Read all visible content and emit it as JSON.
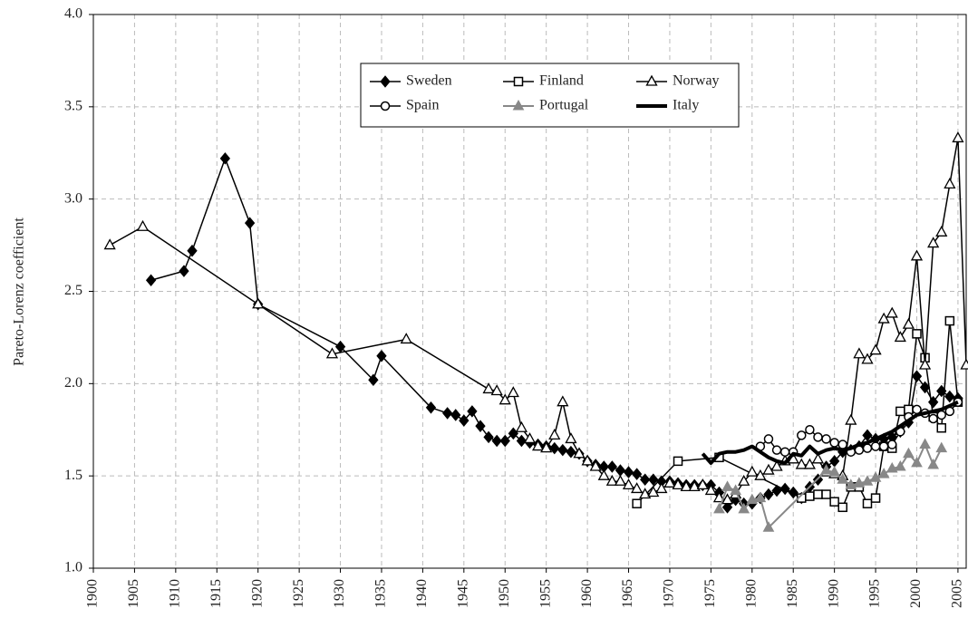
{
  "chart_data": {
    "type": "line",
    "y_label": "Pareto-Lorenz coefficient",
    "xlim": [
      1900,
      2006
    ],
    "ylim": [
      1.0,
      4.0
    ],
    "xticks": [
      1900,
      1905,
      1910,
      1915,
      1920,
      1925,
      1930,
      1935,
      1940,
      1945,
      1950,
      1955,
      1960,
      1965,
      1970,
      1975,
      1980,
      1985,
      1990,
      1995,
      2000,
      2005
    ],
    "yticks": [
      {
        "value": 1.0,
        "label": "1.0"
      },
      {
        "value": 1.5,
        "label": "1.5"
      },
      {
        "value": 2.0,
        "label": "2.0"
      },
      {
        "value": 2.5,
        "label": "2.5"
      },
      {
        "value": 3.0,
        "label": "3.0"
      },
      {
        "value": 3.5,
        "label": "3.5"
      },
      {
        "value": 4.0,
        "label": "4.0"
      }
    ],
    "grid": true,
    "legend": "top",
    "series": [
      {
        "name": "Sweden",
        "color": "#000000",
        "marker": "diamond",
        "line_width": 1.5,
        "x": [
          1907,
          1911,
          1912,
          1916,
          1919,
          1920,
          1930,
          1934,
          1935,
          1941,
          1943,
          1944,
          1945,
          1946,
          1947,
          1948,
          1949,
          1950,
          1951,
          1952,
          1953,
          1954,
          1955,
          1956,
          1957,
          1958,
          1959,
          1960,
          1961,
          1962,
          1963,
          1964,
          1965,
          1966,
          1967,
          1968,
          1969,
          1970,
          1971,
          1972,
          1973,
          1974,
          1975,
          1976,
          1977,
          1978,
          1979,
          1980,
          1981,
          1982,
          1983,
          1984,
          1985,
          1986,
          1987,
          1988,
          1989,
          1990,
          1991,
          1992,
          1993,
          1994,
          1995,
          1996,
          1997,
          1998,
          1999,
          2000,
          2001,
          2002,
          2003,
          2004,
          2005
        ],
        "values": [
          2.56,
          2.61,
          2.72,
          3.22,
          2.87,
          2.43,
          2.2,
          2.02,
          2.15,
          1.87,
          1.84,
          1.83,
          1.8,
          1.85,
          1.77,
          1.71,
          1.69,
          1.69,
          1.73,
          1.69,
          1.68,
          1.67,
          1.66,
          1.65,
          1.64,
          1.63,
          1.62,
          1.58,
          1.56,
          1.55,
          1.55,
          1.53,
          1.52,
          1.51,
          1.48,
          1.48,
          1.47,
          1.47,
          1.46,
          1.45,
          1.45,
          1.45,
          1.45,
          1.41,
          1.33,
          1.37,
          1.35,
          1.35,
          1.38,
          1.4,
          1.42,
          1.43,
          1.41,
          1.38,
          1.44,
          1.48,
          1.55,
          1.58,
          1.63,
          1.64,
          1.66,
          1.72,
          1.7,
          1.7,
          1.71,
          1.74,
          1.79,
          2.04,
          1.98,
          1.9,
          1.96,
          1.93,
          1.92
        ]
      },
      {
        "name": "Finland",
        "color": "#000000",
        "marker": "square",
        "line_width": 1.5,
        "x": [
          1966,
          1971,
          1976,
          1986,
          1987,
          1988,
          1989,
          1990,
          1991,
          1992,
          1993,
          1994,
          1995,
          1996,
          1997,
          1998,
          1999,
          2000,
          2001,
          2002,
          2003,
          2004,
          2005
        ],
        "values": [
          1.35,
          1.58,
          1.6,
          1.38,
          1.39,
          1.4,
          1.4,
          1.36,
          1.33,
          1.44,
          1.44,
          1.35,
          1.38,
          1.66,
          1.65,
          1.85,
          1.86,
          2.27,
          2.14,
          1.82,
          1.76,
          2.34,
          1.9
        ]
      },
      {
        "name": "Norway",
        "color": "#000000",
        "marker": "triangle",
        "line_width": 1.5,
        "x": [
          1902,
          1906,
          1920,
          1929,
          1938,
          1948,
          1949,
          1950,
          1951,
          1952,
          1953,
          1954,
          1955,
          1956,
          1957,
          1958,
          1959,
          1960,
          1961,
          1962,
          1963,
          1964,
          1965,
          1966,
          1967,
          1968,
          1969,
          1970,
          1971,
          1972,
          1973,
          1974,
          1975,
          1976,
          1977,
          1978,
          1979,
          1980,
          1981,
          1982,
          1983,
          1984,
          1985,
          1986,
          1987,
          1988,
          1989,
          1990,
          1991,
          1992,
          1993,
          1994,
          1995,
          1996,
          1997,
          1998,
          1999,
          2000,
          2001,
          2002,
          2003,
          2004,
          2005,
          2006
        ],
        "values": [
          2.75,
          2.85,
          2.43,
          2.16,
          2.24,
          1.97,
          1.96,
          1.91,
          1.95,
          1.76,
          1.7,
          1.66,
          1.65,
          1.72,
          1.9,
          1.7,
          1.62,
          1.58,
          1.55,
          1.5,
          1.47,
          1.47,
          1.45,
          1.43,
          1.4,
          1.41,
          1.43,
          1.46,
          1.45,
          1.44,
          1.44,
          1.45,
          1.42,
          1.38,
          1.37,
          1.4,
          1.47,
          1.52,
          1.5,
          1.53,
          1.55,
          1.58,
          1.59,
          1.56,
          1.56,
          1.59,
          1.52,
          1.51,
          1.5,
          1.8,
          2.16,
          2.13,
          2.18,
          2.35,
          2.38,
          2.25,
          2.32,
          2.69,
          2.1,
          2.76,
          2.82,
          3.08,
          3.33,
          2.1
        ]
      },
      {
        "name": "Spain",
        "color": "#000000",
        "marker": "circle",
        "line_width": 1.5,
        "x": [
          1981,
          1982,
          1983,
          1984,
          1985,
          1986,
          1987,
          1988,
          1989,
          1990,
          1991,
          1992,
          1993,
          1994,
          1995,
          1996,
          1997,
          1998,
          1999,
          2000,
          2001,
          2002,
          2003,
          2004,
          2005
        ],
        "values": [
          1.66,
          1.7,
          1.64,
          1.63,
          1.63,
          1.72,
          1.75,
          1.71,
          1.7,
          1.68,
          1.67,
          1.63,
          1.64,
          1.65,
          1.66,
          1.66,
          1.67,
          1.74,
          1.82,
          1.86,
          1.84,
          1.81,
          1.83,
          1.85,
          1.9
        ]
      },
      {
        "name": "Portugal",
        "color": "#888888",
        "marker": "filled-triangle",
        "line_width": 2,
        "x": [
          1976,
          1977,
          1978,
          1979,
          1980,
          1981,
          1982,
          1989,
          1990,
          1991,
          1992,
          1993,
          1994,
          1995,
          1996,
          1997,
          1998,
          1999,
          2000,
          2001,
          2002,
          2003
        ],
        "values": [
          1.32,
          1.44,
          1.42,
          1.32,
          1.37,
          1.38,
          1.22,
          1.53,
          1.52,
          1.48,
          1.45,
          1.46,
          1.47,
          1.49,
          1.51,
          1.54,
          1.55,
          1.62,
          1.57,
          1.67,
          1.56,
          1.65
        ]
      },
      {
        "name": "Italy",
        "color": "#000000",
        "marker": "none",
        "line_width": 4,
        "x": [
          1974,
          1975,
          1976,
          1977,
          1978,
          1979,
          1980,
          1981,
          1982,
          1983,
          1984,
          1985,
          1986,
          1987,
          1988,
          1989,
          1990,
          1991,
          1992,
          1993,
          1994,
          1995,
          1996,
          1997,
          1998,
          1999,
          2000,
          2001,
          2002,
          2003,
          2004,
          2005
        ],
        "values": [
          1.62,
          1.57,
          1.62,
          1.63,
          1.63,
          1.64,
          1.66,
          1.63,
          1.6,
          1.58,
          1.57,
          1.62,
          1.61,
          1.66,
          1.62,
          1.64,
          1.65,
          1.64,
          1.65,
          1.67,
          1.68,
          1.7,
          1.72,
          1.74,
          1.77,
          1.8,
          1.83,
          1.84,
          1.85,
          1.86,
          1.88,
          1.9
        ]
      }
    ]
  }
}
